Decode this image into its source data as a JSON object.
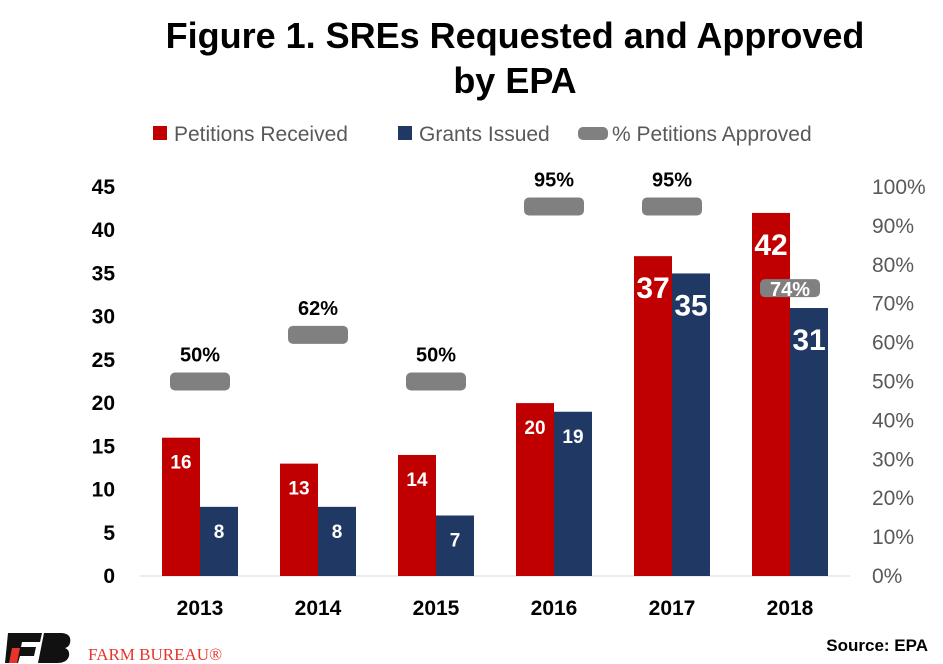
{
  "chart_data": {
    "type": "bar",
    "title": "Figure 1. SREs Requested and Approved by EPA",
    "title_lines": [
      "Figure 1. SREs Requested and Approved",
      "by EPA"
    ],
    "categories": [
      "2013",
      "2014",
      "2015",
      "2016",
      "2017",
      "2018"
    ],
    "series": [
      {
        "name": "Petitions Received",
        "type": "bar",
        "axis": "left",
        "color": "#c00000",
        "values": [
          16,
          13,
          14,
          20,
          37,
          42
        ]
      },
      {
        "name": "Grants Issued",
        "type": "bar",
        "axis": "left",
        "color": "#1f3864",
        "values": [
          8,
          8,
          7,
          19,
          35,
          31
        ]
      },
      {
        "name": "% Petitions Approved",
        "type": "marker",
        "axis": "right",
        "color": "#808080",
        "values": [
          50,
          62,
          50,
          95,
          95,
          74
        ],
        "labels": [
          "50%",
          "62%",
          "50%",
          "95%",
          "95%",
          "74%"
        ]
      }
    ],
    "ylim": [
      0,
      45
    ],
    "yticks": [
      "0",
      "5",
      "10",
      "15",
      "20",
      "25",
      "30",
      "35",
      "40",
      "45"
    ],
    "y2lim": [
      0,
      100
    ],
    "y2ticks": [
      "0%",
      "10%",
      "20%",
      "30%",
      "40%",
      "50%",
      "60%",
      "70%",
      "80%",
      "90%",
      "100%"
    ],
    "grid": false,
    "legend_position": "top",
    "source": "Source: EPA"
  },
  "logo": {
    "text": "FARM BUREAU®",
    "colors": {
      "dark": "#111111",
      "red": "#e8332a"
    }
  }
}
